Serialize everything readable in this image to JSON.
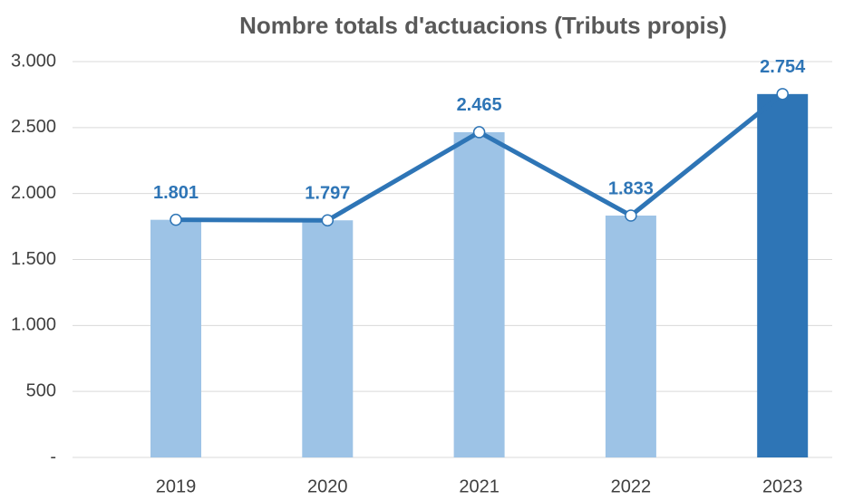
{
  "chart_data": {
    "type": "bar",
    "title": "Nombre totals d'actuacions (Tributs propis)",
    "categories": [
      "2019",
      "2020",
      "2021",
      "2022",
      "2023"
    ],
    "values": [
      1801,
      1797,
      2465,
      1833,
      2754
    ],
    "value_labels": [
      "1.801",
      "1.797",
      "2.465",
      "1.833",
      "2.754"
    ],
    "bar_colors": [
      "#9dc3e6",
      "#9dc3e6",
      "#9dc3e6",
      "#9dc3e6",
      "#2e75b6"
    ],
    "line_color": "#2e75b6",
    "ylim": [
      0,
      3000
    ],
    "yticks": [
      {
        "value": 0,
        "label": "-"
      },
      500,
      {
        "value": 1000,
        "label": "1.000"
      },
      {
        "value": 1500,
        "label": "1.500"
      },
      {
        "value": 2000,
        "label": "2.000"
      },
      {
        "value": 2500,
        "label": "2.500"
      },
      {
        "value": 3000,
        "label": "3.000"
      }
    ],
    "grid": true
  }
}
